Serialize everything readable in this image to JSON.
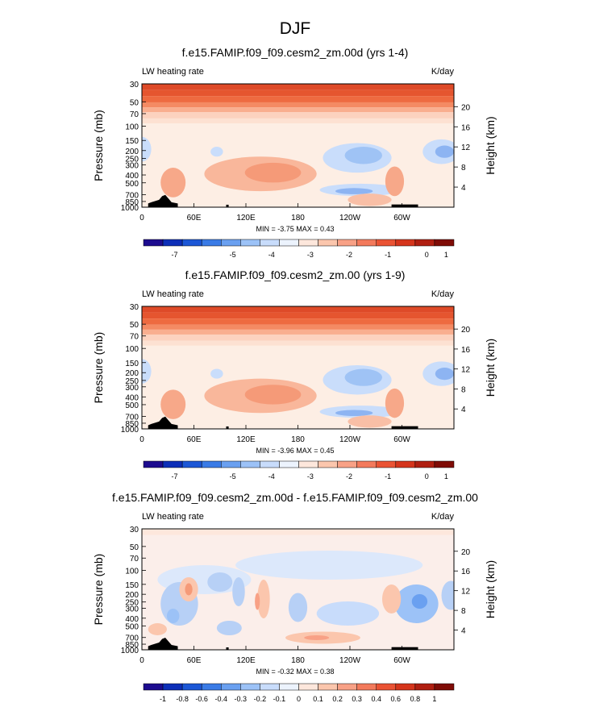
{
  "figure_title": "DJF",
  "colorbar_colors_main": [
    "#1d0c8f",
    "#0d2fb8",
    "#1c57d6",
    "#3a7be6",
    "#6aa0f0",
    "#9cc2f7",
    "#c8dcfb",
    "#ecf3fd",
    "#fde7dc",
    "#fbc6ad",
    "#f8a186",
    "#f37a5c",
    "#ea5334",
    "#d5351c",
    "#b01f11",
    "#7f0c06"
  ],
  "colorbar_colors_diff": [
    "#1d0c8f",
    "#0d2fb8",
    "#1c57d6",
    "#3a7be6",
    "#6aa0f0",
    "#9cc2f7",
    "#c8dcfb",
    "#ecf3fd",
    "#fde7dc",
    "#fbc6ad",
    "#f8a186",
    "#f37a5c",
    "#ea5334",
    "#d5351c",
    "#b01f11",
    "#7f0c06"
  ],
  "chart_data": [
    {
      "type": "heatmap",
      "title": "f.e15.FAMIP.f09_f09.cesm2_zm.00d (yrs 1-4)",
      "left_label": "LW heating rate",
      "right_label": "K/day",
      "xlabel": "",
      "ylabel": "Pressure (mb)",
      "y2label": "Height (km)",
      "x_ticklabels": [
        "0",
        "60E",
        "120E",
        "180",
        "120W",
        "60W"
      ],
      "y_ticklabels": [
        "30",
        "50",
        "70",
        "100",
        "150",
        "200",
        "250",
        "300",
        "400",
        "500",
        "700",
        "850",
        "1000"
      ],
      "y2_ticklabels": [
        "20",
        "16",
        "12",
        "8",
        "4"
      ],
      "stats": "MIN =  -3.75  MAX =   0.43",
      "colorbar_labels": [
        "-7",
        "-5",
        "-4",
        "-3",
        "-2",
        "-1",
        "0",
        "1"
      ]
    },
    {
      "type": "heatmap",
      "title": "f.e15.FAMIP.f09_f09.cesm2_zm.00 (yrs 1-9)",
      "left_label": "LW heating rate",
      "right_label": "K/day",
      "xlabel": "",
      "ylabel": "Pressure (mb)",
      "y2label": "Height (km)",
      "x_ticklabels": [
        "0",
        "60E",
        "120E",
        "180",
        "120W",
        "60W"
      ],
      "y_ticklabels": [
        "30",
        "50",
        "70",
        "100",
        "150",
        "200",
        "250",
        "300",
        "400",
        "500",
        "700",
        "850",
        "1000"
      ],
      "y2_ticklabels": [
        "20",
        "16",
        "12",
        "8",
        "4"
      ],
      "stats": "MIN =  -3.96  MAX =   0.45",
      "colorbar_labels": [
        "-7",
        "-5",
        "-4",
        "-3",
        "-2",
        "-1",
        "0",
        "1"
      ]
    },
    {
      "type": "heatmap",
      "title": "f.e15.FAMIP.f09_f09.cesm2_zm.00d - f.e15.FAMIP.f09_f09.cesm2_zm.00",
      "left_label": "LW heating rate",
      "right_label": "K/day",
      "xlabel": "",
      "ylabel": "Pressure (mb)",
      "y2label": "Height (km)",
      "x_ticklabels": [
        "0",
        "60E",
        "120E",
        "180",
        "120W",
        "60W"
      ],
      "y_ticklabels": [
        "30",
        "50",
        "70",
        "100",
        "150",
        "200",
        "250",
        "300",
        "400",
        "500",
        "700",
        "850",
        "1000"
      ],
      "y2_ticklabels": [
        "20",
        "16",
        "12",
        "8",
        "4"
      ],
      "stats": "MIN =  -0.32  MAX =   0.38",
      "colorbar_labels": [
        "-1",
        "-0.8",
        "-0.6",
        "-0.4",
        "-0.3",
        "-0.2",
        "-0.1",
        "0",
        "0.1",
        "0.2",
        "0.3",
        "0.4",
        "0.6",
        "0.8",
        "1"
      ]
    }
  ]
}
